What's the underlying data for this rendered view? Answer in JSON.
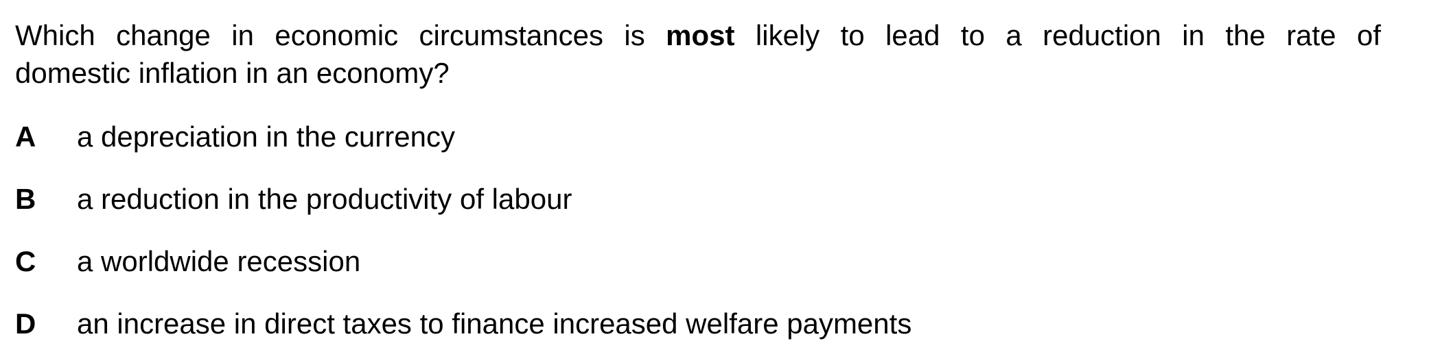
{
  "question": {
    "line1_before": "Which change in economic circumstances is",
    "line1_emphasis": "most",
    "line1_after": "likely to lead to a reduction in the rate of",
    "line2": "domestic inflation in an economy?"
  },
  "options": [
    {
      "letter": "A",
      "text": "a depreciation in the currency"
    },
    {
      "letter": "B",
      "text": "a reduction in the productivity of labour"
    },
    {
      "letter": "C",
      "text": "a worldwide recession"
    },
    {
      "letter": "D",
      "text": "an increase in direct taxes to finance increased welfare payments"
    }
  ]
}
